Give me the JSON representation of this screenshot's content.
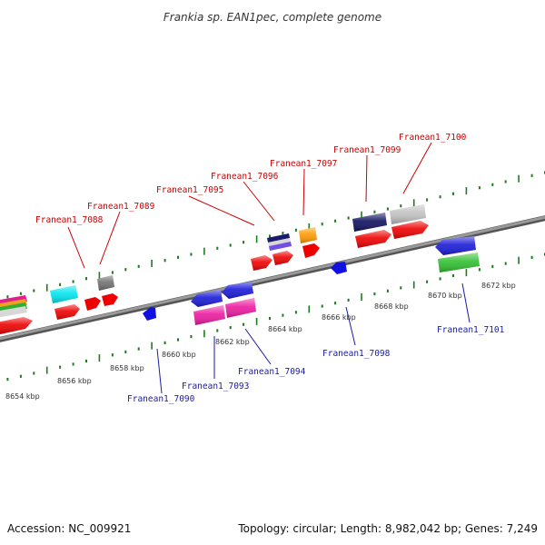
{
  "title": "Frankia sp. EAN1pec, complete genome",
  "footer": {
    "accession": "Accession: NC_009921",
    "summary": "Topology: circular; Length: 8,982,042 bp; Genes: 7,249"
  },
  "colors": {
    "backbone": "#8a8a8a",
    "tick": "#1e7a1e",
    "label_top": "#cc0000",
    "label_bottom": "#1a1aa8"
  },
  "scale_labels": [
    "8654 kbp",
    "8656 kbp",
    "8658 kbp",
    "8660 kbp",
    "8662 kbp",
    "8664 kbp",
    "8666 kbp",
    "8668 kbp",
    "8670 kbp",
    "8672 kbp"
  ],
  "top_labels": [
    "Franean1_7088",
    "Franean1_7089",
    "Franean1_7095",
    "Franean1_7096",
    "Franean1_7097",
    "Franean1_7099",
    "Franean1_7100"
  ],
  "bottom_labels": [
    "Franean1_7090",
    "Franean1_7093",
    "Franean1_7094",
    "Franean1_7098",
    "Franean1_7101"
  ]
}
